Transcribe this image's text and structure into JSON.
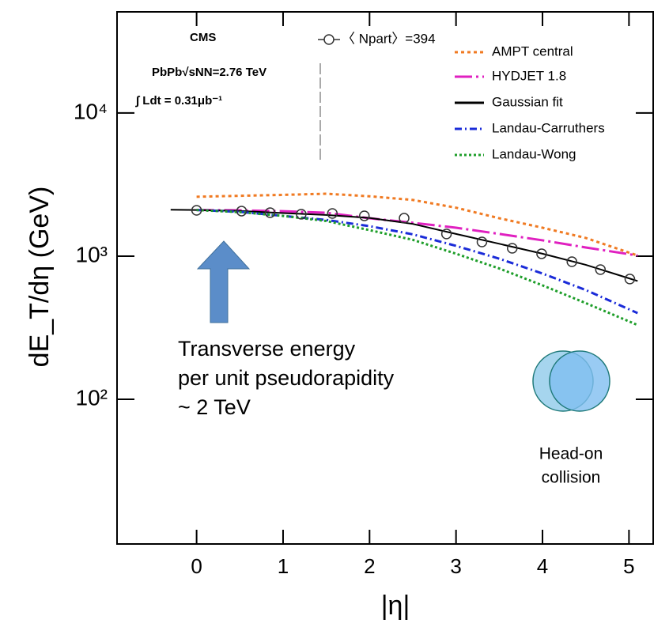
{
  "chart_data": {
    "type": "line",
    "y_label": "dE_T/dη (GeV)",
    "x_label": "|η|",
    "log_y": true,
    "xlim": [
      -0.92,
      5.28
    ],
    "ylim": [
      9.75,
      50900
    ],
    "xticks": [
      0,
      1,
      2,
      3,
      4,
      5
    ],
    "yticks": [
      {
        "value": 100,
        "label": "10²"
      },
      {
        "value": 1000,
        "label": "10³"
      },
      {
        "value": 10000,
        "label": "10⁴"
      }
    ],
    "annotations": [
      "CMS",
      "PbPb√sNN=2.76 TeV",
      "∫ Ldt = 0.31μb⁻¹",
      "Transverse energy",
      "per unit pseudorapidity",
      "~ 2 TeV",
      "Head-on",
      "collision"
    ],
    "points": {
      "name": "〈 Npart〉=394",
      "color": "#333333",
      "x": [
        0,
        0.52,
        0.85,
        1.21,
        1.57,
        1.94,
        2.4,
        2.89,
        3.3,
        3.65,
        3.99,
        4.34,
        4.67,
        5.01
      ],
      "values": [
        2090,
        2065,
        2013,
        1963,
        1987,
        1913,
        1842,
        1429,
        1257,
        1135,
        1039,
        914,
        805,
        692
      ]
    },
    "series": [
      {
        "name": "AMPT central",
        "color": "#f07a22",
        "dash": "4,4",
        "x": [
          0,
          0.5,
          1,
          1.5,
          2,
          2.5,
          3,
          3.5,
          4,
          4.5,
          5.1
        ],
        "values": [
          2600,
          2640,
          2680,
          2730,
          2620,
          2470,
          2180,
          1840,
          1580,
          1340,
          1010
        ]
      },
      {
        "name": "HYDJET 1.8",
        "color": "#e020c0",
        "dash": "22,5,3,5",
        "x": [
          0,
          0.5,
          1,
          1.5,
          2,
          2.5,
          3,
          3.5,
          4,
          4.5,
          5.1
        ],
        "values": [
          2100,
          2090,
          2060,
          2010,
          1840,
          1710,
          1580,
          1430,
          1290,
          1150,
          1010
        ]
      },
      {
        "name": "Gaussian fit",
        "color": "#000000",
        "dash": "none",
        "x": [
          -0.3,
          0,
          0.5,
          1,
          1.5,
          2,
          2.5,
          3,
          3.5,
          4,
          4.5,
          5,
          5.1
        ],
        "values": [
          2110,
          2100,
          2070,
          2000,
          1940,
          1850,
          1680,
          1430,
          1220,
          1040,
          870,
          700,
          670
        ]
      },
      {
        "name": "Landau-Carruthers",
        "color": "#1a2bd8",
        "dash": "9,4,2,4",
        "x": [
          0,
          0.5,
          1,
          1.5,
          2,
          2.5,
          3,
          3.5,
          4,
          4.5,
          5.1
        ],
        "values": [
          2100,
          2040,
          1910,
          1790,
          1620,
          1420,
          1180,
          960,
          756,
          580,
          400
        ]
      },
      {
        "name": "Landau-Wong",
        "color": "#1e9e2a",
        "dash": "3,3",
        "x": [
          0,
          0.5,
          1,
          1.5,
          2,
          2.5,
          3,
          3.5,
          4,
          4.5,
          5.1
        ],
        "values": [
          2100,
          2030,
          1910,
          1760,
          1520,
          1300,
          1040,
          820,
          625,
          470,
          330
        ]
      }
    ]
  }
}
